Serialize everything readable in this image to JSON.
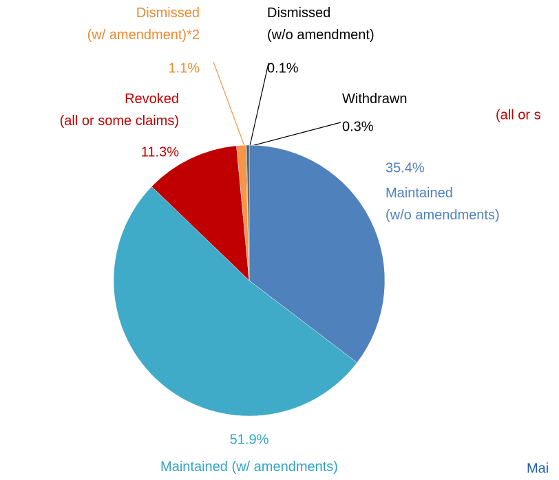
{
  "chart_data": {
    "type": "pie",
    "categories": [
      "Maintained\n(w/o amendments)",
      "Maintained (w/ amendments)",
      "Revoked\n(all or some claims)",
      "Dismissed\n(w/ amendment)*2",
      "Dismissed\n(w/o amendment)",
      "Withdrawn"
    ],
    "values": [
      35.4,
      51.9,
      11.3,
      1.1,
      0.1,
      0.3
    ],
    "value_labels": [
      "35.4%",
      "51.9%",
      "11.3%",
      "1.1%",
      "0.1%",
      "0.3%"
    ],
    "colors": [
      "#4f81bd",
      "#3fabc9",
      "#c00000",
      "#f79646",
      "#1f3864",
      "#595959"
    ],
    "label_colors": [
      "#4f81bd",
      "#31a3c9",
      "#c00000",
      "#f08a30",
      "#000000",
      "#000000"
    ],
    "annotations": [
      "(all or s",
      "Mai"
    ]
  }
}
